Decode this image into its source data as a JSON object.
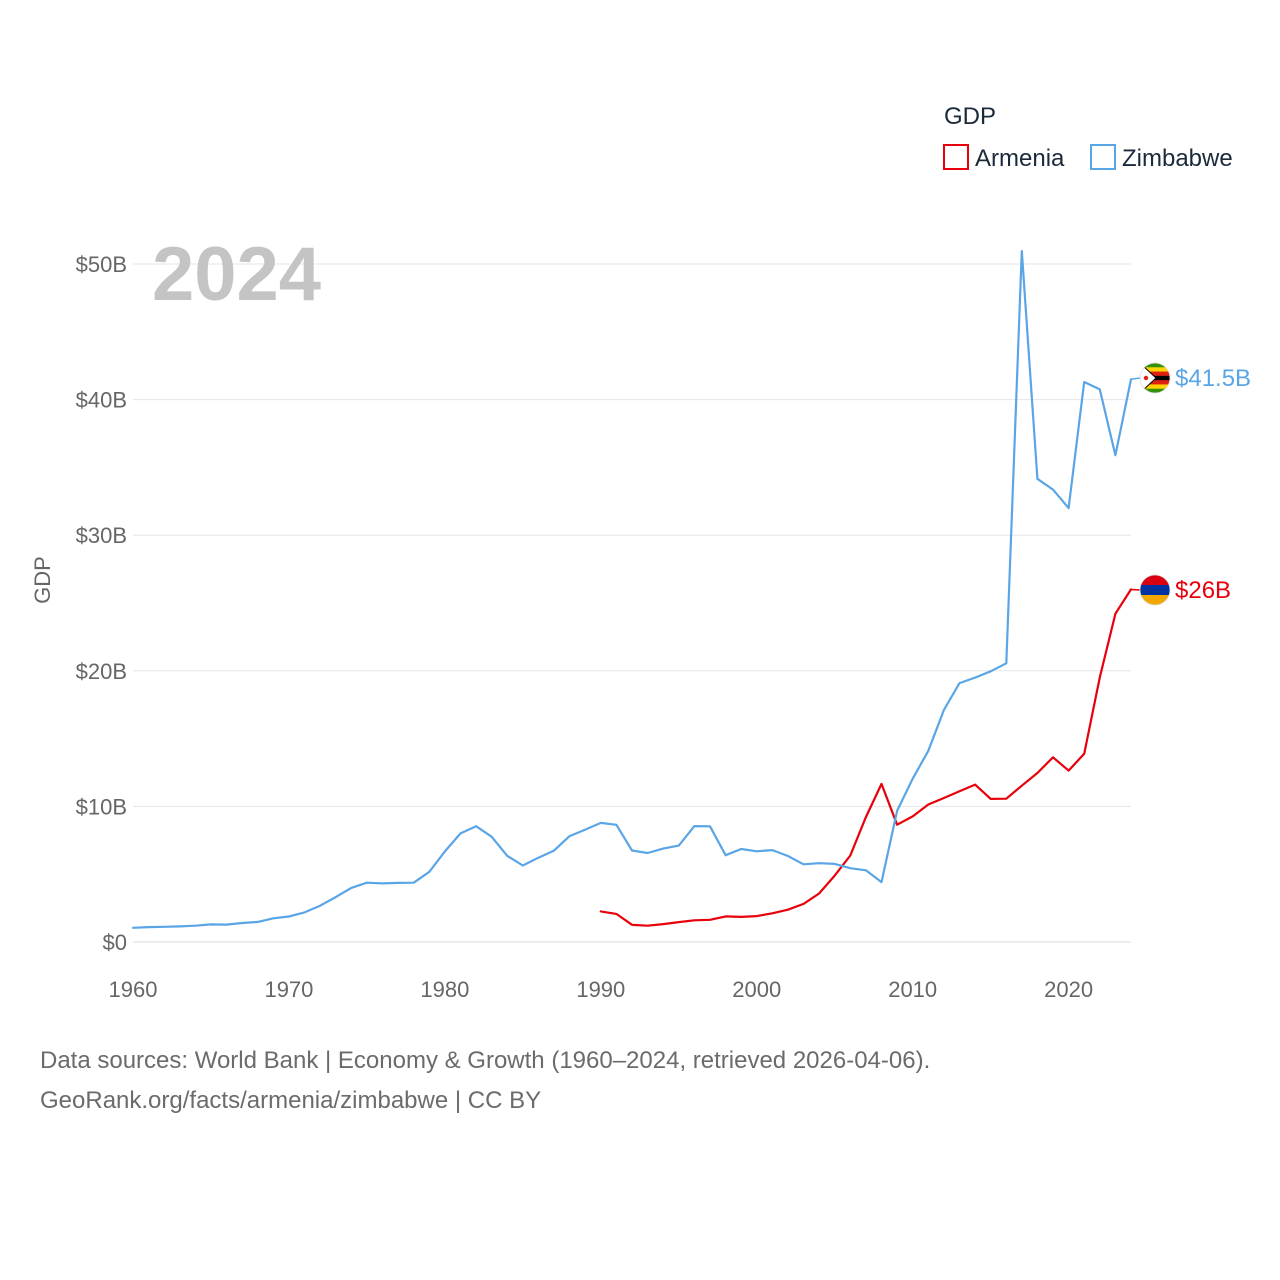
{
  "chart_data": {
    "type": "line",
    "title": "",
    "year_label": "2024",
    "xlabel": "",
    "ylabel": "GDP",
    "xlim": [
      1960,
      2024
    ],
    "ylim": [
      0,
      50
    ],
    "x_ticks": [
      1960,
      1970,
      1980,
      1990,
      2000,
      2010,
      2020
    ],
    "y_ticks": [
      0,
      10,
      20,
      30,
      40,
      50
    ],
    "y_tick_labels": [
      "$0",
      "$10B",
      "$20B",
      "$30B",
      "$40B",
      "$50B"
    ],
    "grid": true,
    "legend": {
      "title": "GDP",
      "position": "top-right",
      "entries": [
        "Armenia",
        "Zimbabwe"
      ]
    },
    "series": [
      {
        "name": "Armenia",
        "color": "#e8000b",
        "end_label": "$26B",
        "flag": "armenia-flag",
        "points": [
          [
            1990,
            2.26
          ],
          [
            1991,
            2.07
          ],
          [
            1992,
            1.27
          ],
          [
            1993,
            1.2
          ],
          [
            1994,
            1.32
          ],
          [
            1995,
            1.47
          ],
          [
            1996,
            1.6
          ],
          [
            1997,
            1.64
          ],
          [
            1998,
            1.89
          ],
          [
            1999,
            1.85
          ],
          [
            2000,
            1.91
          ],
          [
            2001,
            2.12
          ],
          [
            2002,
            2.38
          ],
          [
            2003,
            2.81
          ],
          [
            2004,
            3.58
          ],
          [
            2005,
            4.9
          ],
          [
            2006,
            6.38
          ],
          [
            2007,
            9.21
          ],
          [
            2008,
            11.66
          ],
          [
            2009,
            8.65
          ],
          [
            2010,
            9.26
          ],
          [
            2011,
            10.14
          ],
          [
            2012,
            10.62
          ],
          [
            2013,
            11.12
          ],
          [
            2014,
            11.61
          ],
          [
            2015,
            10.55
          ],
          [
            2016,
            10.57
          ],
          [
            2017,
            11.53
          ],
          [
            2018,
            12.46
          ],
          [
            2019,
            13.62
          ],
          [
            2020,
            12.64
          ],
          [
            2021,
            13.88
          ],
          [
            2022,
            19.51
          ],
          [
            2023,
            24.21
          ],
          [
            2024,
            26.0
          ]
        ]
      },
      {
        "name": "Zimbabwe",
        "color": "#5aa5e6",
        "end_label": "$41.5B",
        "flag": "zimbabwe-flag",
        "points": [
          [
            1960,
            1.05
          ],
          [
            1961,
            1.1
          ],
          [
            1962,
            1.12
          ],
          [
            1963,
            1.15
          ],
          [
            1964,
            1.2
          ],
          [
            1965,
            1.3
          ],
          [
            1966,
            1.28
          ],
          [
            1967,
            1.4
          ],
          [
            1968,
            1.48
          ],
          [
            1969,
            1.75
          ],
          [
            1970,
            1.88
          ],
          [
            1971,
            2.18
          ],
          [
            1972,
            2.68
          ],
          [
            1973,
            3.31
          ],
          [
            1974,
            3.99
          ],
          [
            1975,
            4.37
          ],
          [
            1976,
            4.32
          ],
          [
            1977,
            4.36
          ],
          [
            1978,
            4.37
          ],
          [
            1979,
            5.18
          ],
          [
            1980,
            6.68
          ],
          [
            1981,
            8.01
          ],
          [
            1982,
            8.54
          ],
          [
            1983,
            7.76
          ],
          [
            1984,
            6.35
          ],
          [
            1985,
            5.64
          ],
          [
            1986,
            6.22
          ],
          [
            1987,
            6.74
          ],
          [
            1988,
            7.81
          ],
          [
            1989,
            8.29
          ],
          [
            1990,
            8.78
          ],
          [
            1991,
            8.64
          ],
          [
            1992,
            6.75
          ],
          [
            1993,
            6.56
          ],
          [
            1994,
            6.89
          ],
          [
            1995,
            7.11
          ],
          [
            1996,
            8.55
          ],
          [
            1997,
            8.53
          ],
          [
            1998,
            6.4
          ],
          [
            1999,
            6.86
          ],
          [
            2000,
            6.69
          ],
          [
            2001,
            6.78
          ],
          [
            2002,
            6.34
          ],
          [
            2003,
            5.73
          ],
          [
            2004,
            5.81
          ],
          [
            2005,
            5.76
          ],
          [
            2006,
            5.44
          ],
          [
            2007,
            5.29
          ],
          [
            2008,
            4.42
          ],
          [
            2009,
            9.67
          ],
          [
            2010,
            12.04
          ],
          [
            2011,
            14.1
          ],
          [
            2012,
            17.11
          ],
          [
            2013,
            19.09
          ],
          [
            2014,
            19.5
          ],
          [
            2015,
            19.96
          ],
          [
            2016,
            20.55
          ],
          [
            2017,
            50.95
          ],
          [
            2018,
            34.16
          ],
          [
            2019,
            33.36
          ],
          [
            2020,
            32.0
          ],
          [
            2021,
            41.3
          ],
          [
            2022,
            40.75
          ],
          [
            2023,
            35.9
          ],
          [
            2024,
            41.5
          ]
        ]
      }
    ],
    "source_lines": [
      "Data sources: World Bank | Economy & Growth (1960–2024, retrieved 2026-04-06).",
      "GeoRank.org/facts/armenia/zimbabwe | CC BY"
    ]
  }
}
